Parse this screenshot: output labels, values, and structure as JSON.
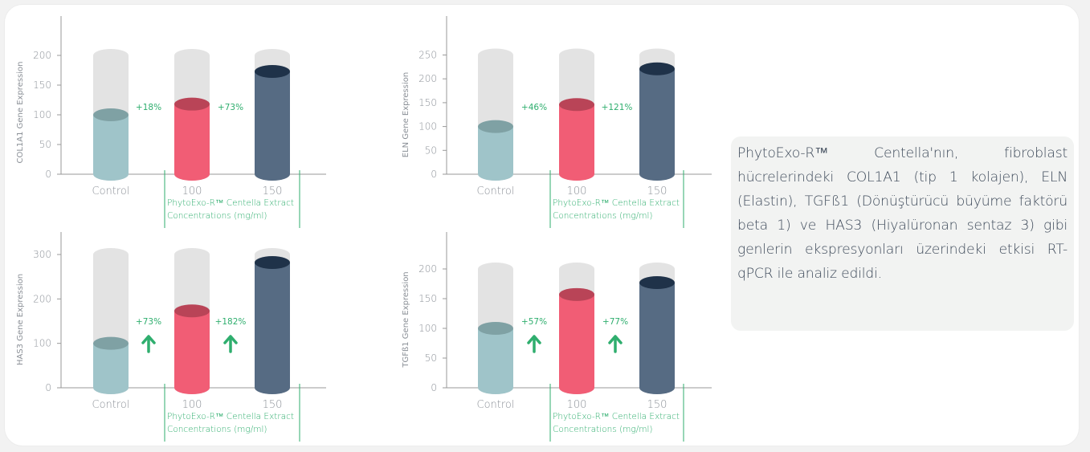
{
  "colors": {
    "control": "#9fc4c9",
    "control_top": "#7fa1a4",
    "c100": "#f15d75",
    "c100_top": "#b94457",
    "c150": "#566b83",
    "c150_top": "#1f3249",
    "background_cylinder": "#e3e3e3",
    "axis": "#999999",
    "label_gray": "#8a8f96",
    "accent_green": "#2fae6e"
  },
  "chart_data": [
    {
      "type": "bar",
      "ylabel": "COL1A1 Gene Expression",
      "ylim": [
        0,
        200
      ],
      "yticks": [
        0,
        50,
        100,
        150,
        200
      ],
      "bg_level": 200,
      "categories": [
        "Control",
        "100",
        "150"
      ],
      "values": [
        100,
        118,
        173
      ],
      "annotations": [
        "+18%",
        "+73%"
      ],
      "arrows": false,
      "xlabel_line1": "PhytoExo-R™  Centella Extract",
      "xlabel_line2": "Concentrations (mg/ml)"
    },
    {
      "type": "bar",
      "ylabel": "ELN Gene Expression",
      "ylim": [
        0,
        250
      ],
      "yticks": [
        0,
        50,
        100,
        150,
        200,
        250
      ],
      "bg_level": 250,
      "categories": [
        "Control",
        "100",
        "150"
      ],
      "values": [
        100,
        146,
        221
      ],
      "annotations": [
        "+46%",
        "+121%"
      ],
      "arrows": false,
      "xlabel_line1": "PhytoExo-R™  Centella Extract",
      "xlabel_line2": "Concentrations (mg/ml)"
    },
    {
      "type": "bar",
      "ylabel": "HAS3 Gene Expression",
      "ylim": [
        0,
        300
      ],
      "yticks": [
        0,
        100,
        200,
        300
      ],
      "bg_level": 300,
      "categories": [
        "Control",
        "100",
        "150"
      ],
      "values": [
        100,
        173,
        282
      ],
      "annotations": [
        "+73%",
        "+182%"
      ],
      "arrows": true,
      "xlabel_line1": "PhytoExo-R™  Centella Extract",
      "xlabel_line2": "Concentrations (mg/ml)"
    },
    {
      "type": "bar",
      "ylabel": "TGFß1 Gene Expression",
      "ylim": [
        0,
        200
      ],
      "yticks": [
        0,
        50,
        100,
        150,
        200
      ],
      "bg_level": 200,
      "categories": [
        "Control",
        "100",
        "150"
      ],
      "values": [
        100,
        157,
        177
      ],
      "annotations": [
        "+57%",
        "+77%"
      ],
      "arrows": true,
      "xlabel_line1": "PhytoExo-R™  Centella Extract",
      "xlabel_line2": "Concentrations (mg/ml)"
    }
  ],
  "info": {
    "text": "PhytoExo-R™ Centella'nın, fibroblast hücrelerindeki COL1A1 (tip 1 kolajen), ELN (Elastin), TGFß1 (Dönüştürücü büyüme faktörü beta 1) ve HAS3 (Hiyalüronan sentaz 3) gibi genlerin ekspresyonları üzerindeki etkisi RT-qPCR ile analiz edildi."
  }
}
